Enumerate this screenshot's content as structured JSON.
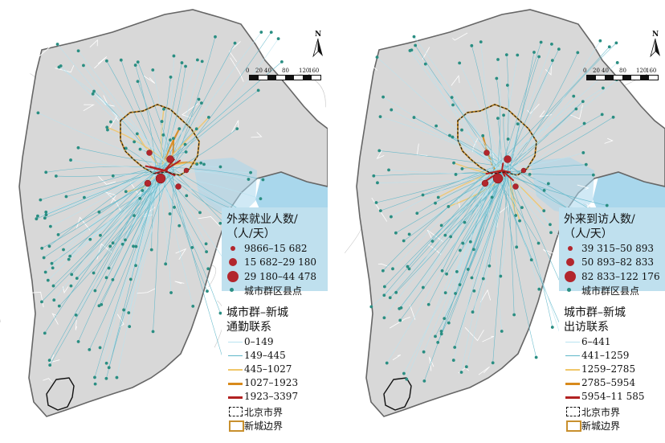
{
  "colors": {
    "sea": "#a9d7ec",
    "region_fill": "#d8d8d8",
    "outside_fill": "#ffffff",
    "region_border": "#666666",
    "county_dot": "#2a8e82",
    "flow_c1": "#b9e3f0",
    "flow_c2": "#5fb7c9",
    "flow_c3": "#f0c76a",
    "flow_c4": "#d88a1c",
    "flow_c5": "#b22222",
    "city_dot": "#b2262d",
    "beijing_border": "#111111",
    "newtown_border": "#c8902e"
  },
  "scale": {
    "ticks": [
      "0",
      "20",
      "40",
      "80",
      "120",
      "160 km"
    ]
  },
  "north_label": "N",
  "panels": [
    {
      "id": "employment",
      "legend": {
        "title_line1": "外来就业人数/",
        "title_line2": "（人/天）",
        "dot_classes": [
          "9866–15 682",
          "15 682–29 180",
          "29 180–44 478"
        ],
        "county_label": "城市群区县点",
        "flow_title_line1": "城市群–新城",
        "flow_title_line2": "通勤联系",
        "flow_classes": [
          "0–149",
          "149–445",
          "445–1027",
          "1027–1923",
          "1923–3397"
        ],
        "beijing_label": "北京市界",
        "newtown_label": "新城边界"
      }
    },
    {
      "id": "visitor",
      "legend": {
        "title_line1": "外来到访人数/",
        "title_line2": "（人/天）",
        "dot_classes": [
          "39 315–50 893",
          "50 893–82 833",
          "82 833–122 176"
        ],
        "county_label": "城市群区县点",
        "flow_title_line1": "城市群–新城",
        "flow_title_line2": "出访联系",
        "flow_classes": [
          "6–441",
          "441–1259",
          "1259–2785",
          "2785–5954",
          "5954–11 585"
        ],
        "beijing_label": "北京市界",
        "newtown_label": "新城边界"
      }
    }
  ]
}
